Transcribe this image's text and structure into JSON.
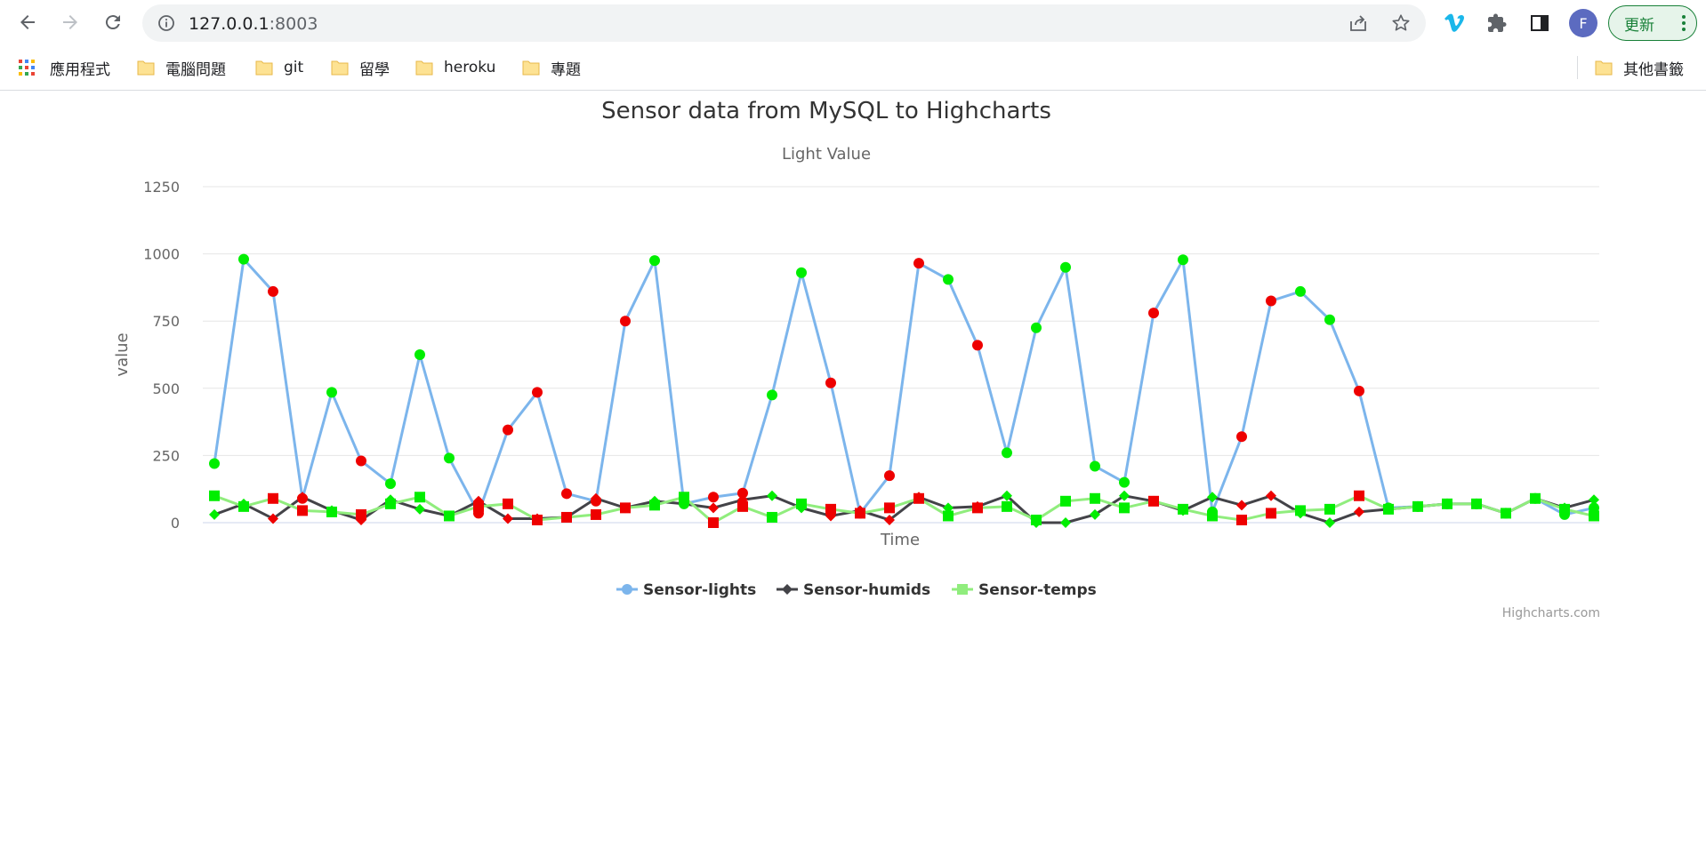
{
  "browser": {
    "url_host": "127.0.0.1",
    "url_port": ":8003",
    "avatar_letter": "F",
    "update_label": "更新"
  },
  "bookmarks": {
    "apps_label": "應用程式",
    "items": [
      "電腦問題",
      "git",
      "留學",
      "heroku",
      "專題"
    ],
    "other_label": "其他書籤"
  },
  "colors": {
    "lights_line": "#7cb5ec",
    "humids_line": "#434348",
    "temps_line": "#90ed7d",
    "marker_green": "#00ee00",
    "marker_red": "#ee0000",
    "grid": "#e6e6e6"
  },
  "chart_data": {
    "type": "line",
    "title": "Sensor data from MySQL to Highcharts",
    "subtitle": "Light Value",
    "xlabel": "Time",
    "ylabel": "value",
    "ylim": [
      0,
      1250
    ],
    "yticks": [
      "0",
      "250",
      "500",
      "750",
      "1000",
      "1250"
    ],
    "legend_position": "bottom-center",
    "credits": "Highcharts.com",
    "series": [
      {
        "name": "Sensor-lights",
        "marker": "circle",
        "values": [
          220,
          980,
          860,
          90,
          485,
          230,
          145,
          625,
          240,
          35,
          345,
          485,
          108,
          80,
          750,
          975,
          70,
          95,
          110,
          475,
          930,
          520,
          35,
          175,
          965,
          905,
          660,
          260,
          725,
          950,
          210,
          150,
          780,
          978,
          40,
          320,
          825,
          860,
          755,
          490,
          55,
          60,
          70,
          70,
          35,
          90,
          30,
          55
        ],
        "marker_colors": [
          "g",
          "g",
          "r",
          "r",
          "g",
          "r",
          "g",
          "g",
          "g",
          "r",
          "r",
          "r",
          "r",
          "r",
          "r",
          "g",
          "g",
          "r",
          "r",
          "g",
          "g",
          "r",
          "r",
          "r",
          "r",
          "g",
          "r",
          "g",
          "g",
          "g",
          "g",
          "g",
          "r",
          "g",
          "g",
          "r",
          "r",
          "g",
          "g",
          "r",
          "g",
          "g",
          "g",
          "g",
          "g",
          "g",
          "g",
          "g"
        ]
      },
      {
        "name": "Sensor-humids",
        "marker": "diamond",
        "values": [
          30,
          70,
          15,
          95,
          45,
          10,
          85,
          50,
          25,
          80,
          15,
          15,
          20,
          90,
          55,
          80,
          70,
          55,
          85,
          100,
          55,
          25,
          45,
          10,
          95,
          55,
          60,
          100,
          0,
          0,
          30,
          100,
          80,
          45,
          95,
          65,
          100,
          35,
          0,
          40,
          50,
          60,
          70,
          70,
          35,
          90,
          55,
          85
        ],
        "marker_colors": [
          "g",
          "g",
          "r",
          "r",
          "g",
          "r",
          "g",
          "g",
          "g",
          "r",
          "r",
          "r",
          "r",
          "r",
          "r",
          "g",
          "g",
          "r",
          "r",
          "g",
          "g",
          "r",
          "r",
          "r",
          "r",
          "g",
          "r",
          "g",
          "g",
          "g",
          "g",
          "g",
          "r",
          "g",
          "g",
          "r",
          "r",
          "g",
          "g",
          "r",
          "g",
          "g",
          "g",
          "g",
          "g",
          "g",
          "g",
          "g"
        ]
      },
      {
        "name": "Sensor-temps",
        "marker": "square",
        "values": [
          100,
          60,
          90,
          45,
          40,
          30,
          70,
          95,
          25,
          60,
          70,
          10,
          20,
          30,
          55,
          65,
          95,
          0,
          60,
          20,
          70,
          50,
          35,
          55,
          90,
          25,
          55,
          60,
          10,
          80,
          90,
          55,
          80,
          50,
          25,
          10,
          35,
          45,
          50,
          100,
          50,
          60,
          70,
          70,
          35,
          90,
          50,
          25
        ],
        "marker_colors": [
          "g",
          "g",
          "r",
          "r",
          "g",
          "r",
          "g",
          "g",
          "g",
          "r",
          "r",
          "r",
          "r",
          "r",
          "r",
          "g",
          "g",
          "r",
          "r",
          "g",
          "g",
          "r",
          "r",
          "r",
          "r",
          "g",
          "r",
          "g",
          "g",
          "g",
          "g",
          "g",
          "r",
          "g",
          "g",
          "r",
          "r",
          "g",
          "g",
          "r",
          "g",
          "g",
          "g",
          "g",
          "g",
          "g",
          "g",
          "g"
        ]
      }
    ]
  }
}
